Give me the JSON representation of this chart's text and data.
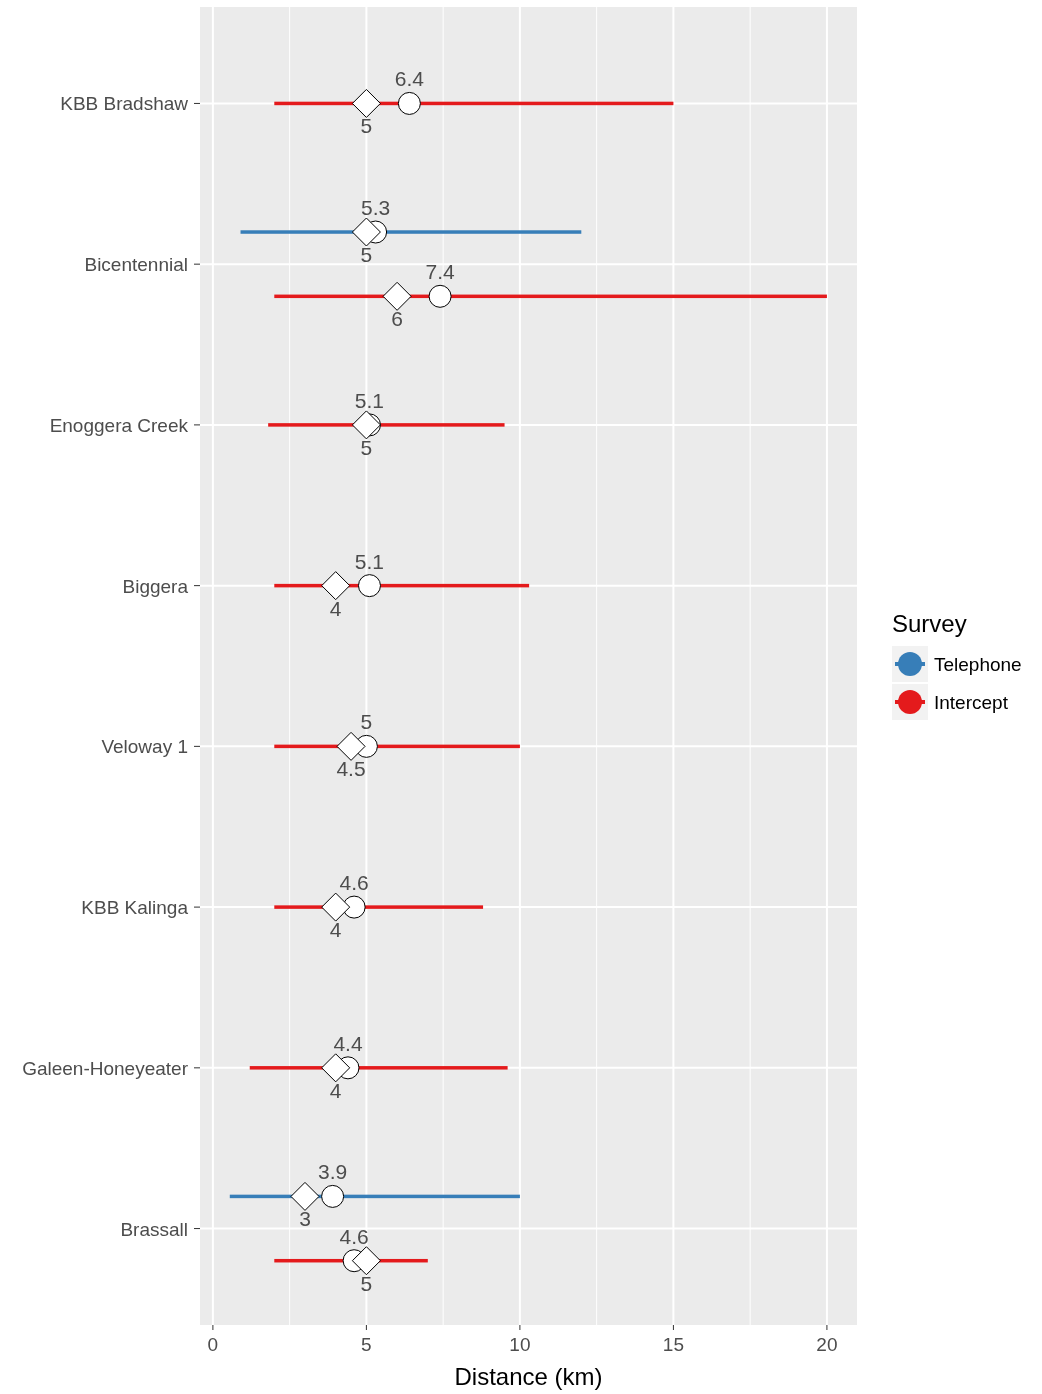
{
  "chart_data": {
    "type": "bar",
    "orientation": "horizontal",
    "xlabel": "Distance (km)",
    "legend_title": "Survey",
    "legend": "right",
    "grid": true,
    "categories": [
      "KBB Bradshaw",
      "Bicentennial",
      "Enoggera Creek",
      "Biggera",
      "Veloway 1",
      "KBB Kalinga",
      "Galeen-Honeyeater",
      "Brassall"
    ],
    "xlim": [
      -0.42,
      20.98
    ],
    "xticks": [
      0,
      5,
      10,
      15,
      20
    ],
    "series": [
      {
        "name": "Telephone",
        "color": "#377eb8",
        "base": [
          null,
          0.9,
          null,
          null,
          null,
          null,
          null,
          0.55
        ],
        "values": [
          null,
          11.1,
          null,
          null,
          null,
          null,
          null,
          9.45
        ]
      },
      {
        "type": "scatter",
        "color": "#ffffff",
        "marker": "circle",
        "data_labels": true,
        "values": [
          null,
          5.3,
          null,
          null,
          null,
          null,
          null,
          3.9
        ]
      },
      {
        "type": "scatter",
        "color": "#ffffff",
        "marker": "diamond",
        "data_labels": true,
        "values": [
          null,
          5,
          null,
          null,
          null,
          null,
          null,
          3
        ]
      },
      {
        "name": "Intercept",
        "color": "#e41a1c",
        "base": [
          2,
          2,
          1.8,
          2,
          2,
          2,
          1.2,
          2
        ],
        "values": [
          13,
          18,
          7.7,
          8.3,
          8,
          6.8,
          8.4,
          5
        ]
      },
      {
        "type": "scatter",
        "color": "#ffffff",
        "marker": "circle",
        "data_labels": true,
        "values": [
          6.4,
          7.4,
          5.1,
          5.1,
          5,
          4.6,
          4.4,
          4.6
        ]
      },
      {
        "type": "scatter",
        "color": "#ffffff",
        "marker": "diamond",
        "data_labels": true,
        "values": [
          5,
          6,
          5,
          4,
          4.5,
          4,
          4,
          5
        ]
      }
    ]
  }
}
